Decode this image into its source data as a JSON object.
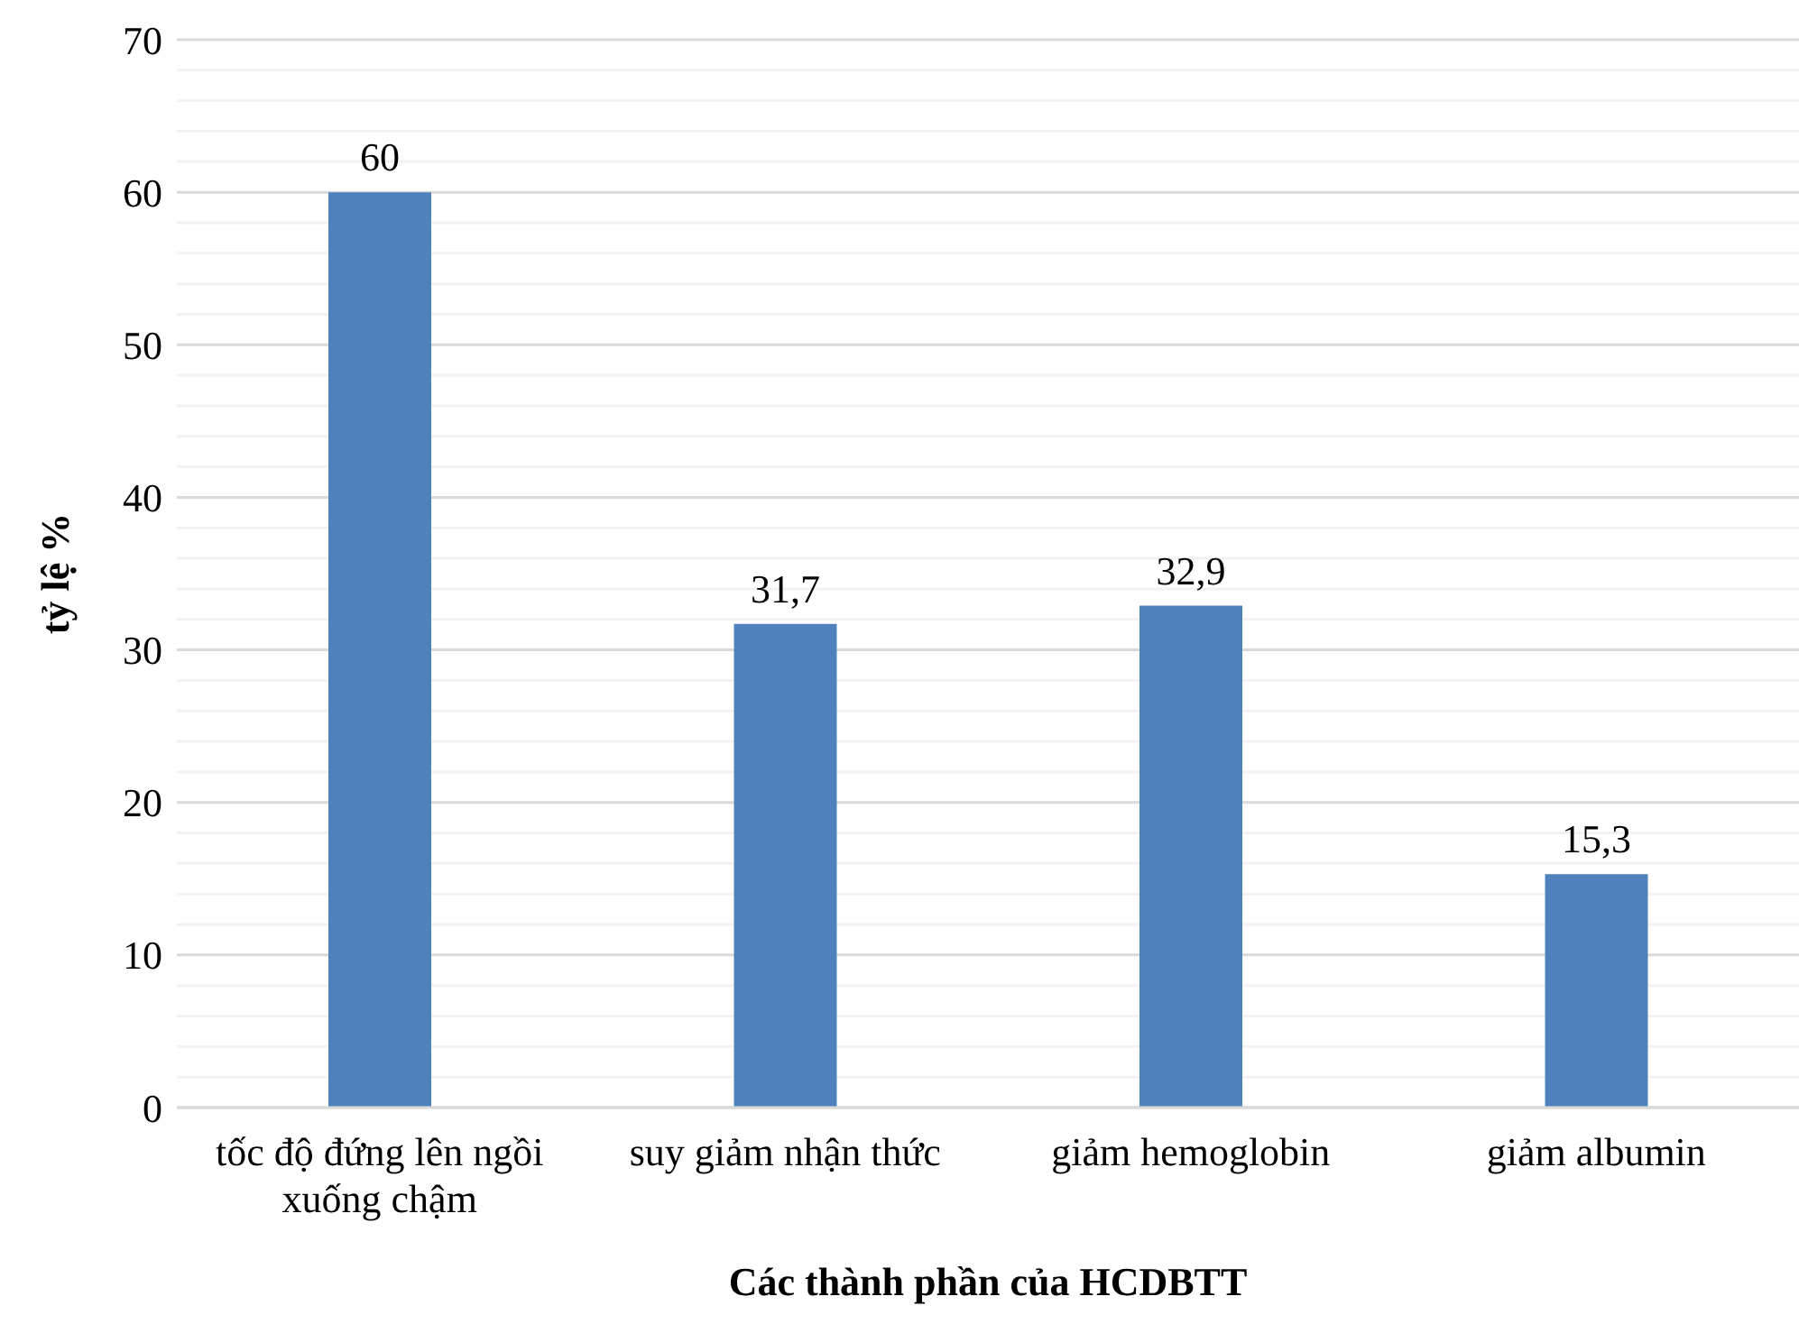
{
  "chart_data": {
    "type": "bar",
    "xlabel": "Các thành phần của HCDBTT",
    "ylabel": "tỷ lệ %",
    "categories": [
      "tốc độ đứng lên ngồi xuống chậm",
      "suy giảm nhận thức",
      "giảm hemoglobin",
      "giảm albumin"
    ],
    "values": [
      60,
      31.7,
      32.9,
      15.3
    ],
    "value_labels": [
      "60",
      "31,7",
      "32,9",
      "15,3"
    ],
    "color": "#4f81bd",
    "ylim": [
      0,
      70
    ],
    "yticks": [
      0,
      {
        "value": 2,
        "label": null
      },
      {
        "value": 4,
        "label": null
      },
      {
        "value": 6,
        "label": null
      },
      {
        "value": 8,
        "label": null
      },
      10,
      {
        "value": 12,
        "label": null
      },
      {
        "value": 14,
        "label": null
      },
      {
        "value": 16,
        "label": null
      },
      {
        "value": 18,
        "label": null
      },
      20,
      {
        "value": 22,
        "label": null
      },
      {
        "value": 24,
        "label": null
      },
      {
        "value": 26,
        "label": null
      },
      {
        "value": 28,
        "label": null
      },
      30,
      {
        "value": 32,
        "label": null
      },
      {
        "value": 34,
        "label": null
      },
      {
        "value": 36,
        "label": null
      },
      {
        "value": 38,
        "label": null
      },
      40,
      {
        "value": 42,
        "label": null
      },
      {
        "value": 44,
        "label": null
      },
      {
        "value": 46,
        "label": null
      },
      {
        "value": 48,
        "label": null
      },
      50,
      {
        "value": 52,
        "label": null
      },
      {
        "value": 54,
        "label": null
      },
      {
        "value": 56,
        "label": null
      },
      {
        "value": 58,
        "label": null
      },
      60,
      {
        "value": 62,
        "label": null
      },
      {
        "value": 64,
        "label": null
      },
      {
        "value": 66,
        "label": null
      },
      {
        "value": 68,
        "label": null
      },
      70
    ],
    "grid": "y"
  }
}
